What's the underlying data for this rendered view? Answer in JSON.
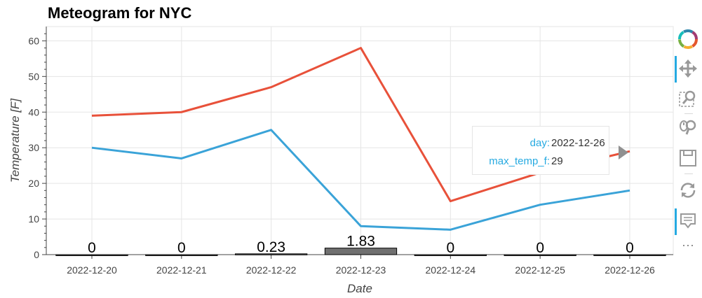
{
  "title": "Meteogram for NYC",
  "chart_data": {
    "type": "line",
    "title": "Meteogram for NYC",
    "xlabel": "Date",
    "ylabel": "Temperature [F]",
    "categories": [
      "2022-12-20",
      "2022-12-21",
      "2022-12-22",
      "2022-12-23",
      "2022-12-24",
      "2022-12-25",
      "2022-12-26"
    ],
    "ylim": [
      0,
      64
    ],
    "yticks": [
      0,
      10,
      20,
      30,
      40,
      50,
      60
    ],
    "grid": true,
    "series": [
      {
        "type": "line",
        "color": "#e8513a",
        "values": [
          39,
          40,
          47,
          58,
          15,
          23,
          29
        ]
      },
      {
        "type": "line",
        "color": "#3aa3d8",
        "values": [
          30,
          27,
          35,
          8,
          7,
          14,
          18
        ]
      },
      {
        "type": "bar",
        "color": "#707070",
        "values": [
          0,
          0,
          0.23,
          1.83,
          0,
          0,
          0
        ],
        "labels": [
          "0",
          "0",
          "0.23",
          "1.83",
          "0",
          "0",
          "0"
        ]
      }
    ]
  },
  "tooltip": {
    "rows": [
      {
        "key": "day:",
        "value": "2022-12-26"
      },
      {
        "key": "max_temp_f:",
        "value": "29"
      }
    ]
  },
  "toolbar": {
    "tools": [
      {
        "name": "bokeh-logo-icon",
        "active": false
      },
      {
        "name": "pan-icon",
        "active": true
      },
      {
        "name": "box-zoom-icon",
        "active": false
      },
      {
        "name": "wheel-zoom-icon",
        "active": false
      },
      {
        "name": "save-icon",
        "active": false
      },
      {
        "name": "reset-icon",
        "active": false
      },
      {
        "name": "hover-icon",
        "active": true
      },
      {
        "name": "more-icon",
        "active": false
      }
    ],
    "more_label": "⋯"
  }
}
